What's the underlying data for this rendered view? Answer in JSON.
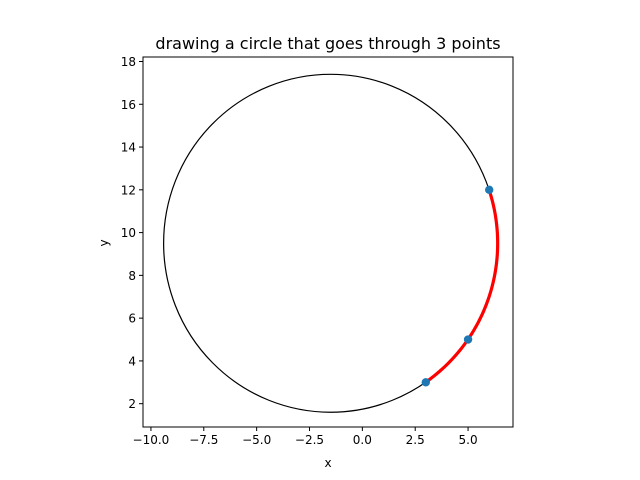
{
  "chart_data": {
    "type": "scatter",
    "title": "drawing a circle that goes through 3 points",
    "xlabel": "x",
    "ylabel": "y",
    "xlim": [
      -10.375,
      7.125
    ],
    "ylim": [
      0.91,
      18.21
    ],
    "xticks": [
      -10.0,
      -7.5,
      -5.0,
      -2.5,
      0.0,
      2.5,
      5.0
    ],
    "xtick_labels": [
      "−10.0",
      "−7.5",
      "−5.0",
      "−2.5",
      "0.0",
      "2.5",
      "5.0"
    ],
    "yticks": [
      2,
      4,
      6,
      8,
      10,
      12,
      14,
      16,
      18
    ],
    "ytick_labels": [
      "2",
      "4",
      "6",
      "8",
      "10",
      "12",
      "14",
      "16",
      "18"
    ],
    "grid": false,
    "points": [
      {
        "x": 3,
        "y": 3
      },
      {
        "x": 5,
        "y": 5
      },
      {
        "x": 6,
        "y": 12
      }
    ],
    "circle": {
      "center_x": -1.5,
      "center_y": 9.5,
      "radius": 7.9
    },
    "arc_through_points": true,
    "colors": {
      "points": "#1f77b4",
      "circle": "#000000",
      "arc": "#ff0000",
      "axes": "#000000"
    }
  }
}
